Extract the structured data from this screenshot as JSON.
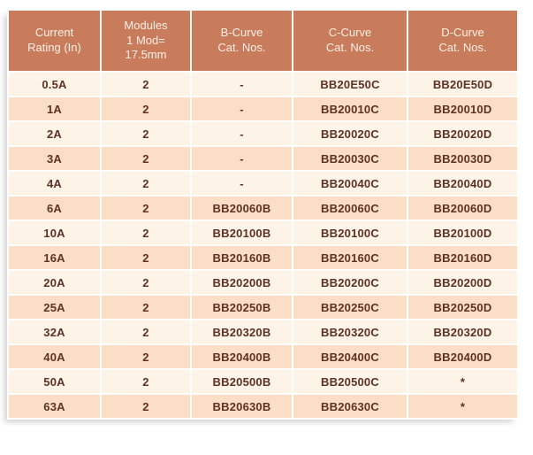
{
  "colors": {
    "header_bg": "#c97c5c",
    "header_text": "#fcefe6",
    "row_light": "#fdf3e6",
    "row_peach": "#fbdec6",
    "body_text": "#5e3124",
    "divider": "#ffffff"
  },
  "table": {
    "columns": [
      {
        "id": "rating",
        "label": "Current\nRating (In)"
      },
      {
        "id": "modules",
        "label": "Modules\n1 Mod=\n17.5mm"
      },
      {
        "id": "b_curve",
        "label": "B-Curve\nCat. Nos."
      },
      {
        "id": "c_curve",
        "label": "C-Curve\nCat. Nos."
      },
      {
        "id": "d_curve",
        "label": "D-Curve\nCat. Nos."
      }
    ],
    "rows": [
      {
        "rating": "0.5A",
        "modules": "2",
        "b_curve": "-",
        "c_curve": "BB20E50C",
        "d_curve": "BB20E50D"
      },
      {
        "rating": "1A",
        "modules": "2",
        "b_curve": "-",
        "c_curve": "BB20010C",
        "d_curve": "BB20010D"
      },
      {
        "rating": "2A",
        "modules": "2",
        "b_curve": "-",
        "c_curve": "BB20020C",
        "d_curve": "BB20020D"
      },
      {
        "rating": "3A",
        "modules": "2",
        "b_curve": "-",
        "c_curve": "BB20030C",
        "d_curve": "BB20030D"
      },
      {
        "rating": "4A",
        "modules": "2",
        "b_curve": "-",
        "c_curve": "BB20040C",
        "d_curve": "BB20040D"
      },
      {
        "rating": "6A",
        "modules": "2",
        "b_curve": "BB20060B",
        "c_curve": "BB20060C",
        "d_curve": "BB20060D"
      },
      {
        "rating": "10A",
        "modules": "2",
        "b_curve": "BB20100B",
        "c_curve": "BB20100C",
        "d_curve": "BB20100D"
      },
      {
        "rating": "16A",
        "modules": "2",
        "b_curve": "BB20160B",
        "c_curve": "BB20160C",
        "d_curve": "BB20160D"
      },
      {
        "rating": "20A",
        "modules": "2",
        "b_curve": "BB20200B",
        "c_curve": "BB20200C",
        "d_curve": "BB20200D"
      },
      {
        "rating": "25A",
        "modules": "2",
        "b_curve": "BB20250B",
        "c_curve": "BB20250C",
        "d_curve": "BB20250D"
      },
      {
        "rating": "32A",
        "modules": "2",
        "b_curve": "BB20320B",
        "c_curve": "BB20320C",
        "d_curve": "BB20320D"
      },
      {
        "rating": "40A",
        "modules": "2",
        "b_curve": "BB20400B",
        "c_curve": "BB20400C",
        "d_curve": "BB20400D"
      },
      {
        "rating": "50A",
        "modules": "2",
        "b_curve": "BB20500B",
        "c_curve": "BB20500C",
        "d_curve": "*"
      },
      {
        "rating": "63A",
        "modules": "2",
        "b_curve": "BB20630B",
        "c_curve": "BB20630C",
        "d_curve": "*"
      }
    ]
  }
}
